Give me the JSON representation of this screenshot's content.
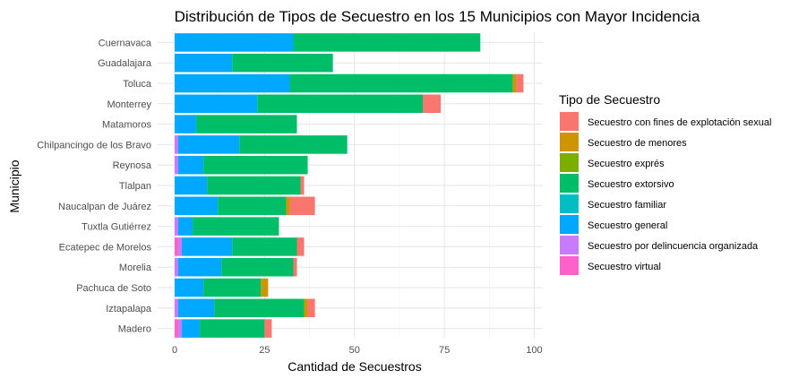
{
  "chart_data": {
    "type": "bar",
    "orientation": "horizontal",
    "stacked": true,
    "title": "Distribución de Tipos de Secuestro en los 15 Municipios con Mayor Incidencia",
    "xlabel": "Cantidad de Secuestros",
    "ylabel": "Municipio",
    "xlim": [
      0,
      100
    ],
    "x_ticks": [
      0,
      25,
      50,
      75,
      100
    ],
    "grid": true,
    "legend_position": "right",
    "legend_title": "Tipo de Secuestro",
    "categories": [
      "Cuernavaca",
      "Guadalajara",
      "Toluca",
      "Monterrey",
      "Matamoros",
      "Chilpancingo de los Bravo",
      "Reynosa",
      "Tlalpan",
      "Naucalpan de Juárez",
      "Tuxtla Gutiérrez",
      "Ecatepec de Morelos",
      "Morelia",
      "Pachuca de Soto",
      "Iztapalapa",
      "Madero"
    ],
    "stack_order": [
      "Secuestro virtual",
      "Secuestro por delincuencia organizada",
      "Secuestro general",
      "Secuestro familiar",
      "Secuestro extorsivo",
      "Secuestro exprés",
      "Secuestro de menores",
      "Secuestro con fines de explotación sexual"
    ],
    "series": [
      {
        "name": "Secuestro con fines de explotación sexual",
        "color": "#F8766D",
        "values": [
          0,
          0,
          2,
          5,
          0,
          0,
          0,
          1,
          7,
          0,
          2,
          1,
          0,
          2,
          2
        ]
      },
      {
        "name": "Secuestro de menores",
        "color": "#CD9600",
        "values": [
          0,
          0,
          1,
          0,
          0,
          0,
          0,
          0,
          1,
          0,
          0,
          0,
          2,
          1,
          0
        ]
      },
      {
        "name": "Secuestro exprés",
        "color": "#7CAE00",
        "values": [
          0,
          0,
          0,
          0,
          0,
          0,
          0,
          0,
          0,
          0,
          0,
          0,
          0,
          0,
          0
        ]
      },
      {
        "name": "Secuestro extorsivo",
        "color": "#00BE67",
        "values": [
          52,
          28,
          62,
          46,
          28,
          30,
          29,
          26,
          19,
          24,
          18,
          20,
          16,
          25,
          18
        ]
      },
      {
        "name": "Secuestro familiar",
        "color": "#00BFC4",
        "values": [
          0,
          0,
          0,
          0,
          0,
          0,
          0,
          0,
          0,
          0,
          0,
          0,
          0,
          0,
          0
        ]
      },
      {
        "name": "Secuestro general",
        "color": "#00A9FF",
        "values": [
          33,
          16,
          32,
          23,
          6,
          17,
          7,
          9,
          12,
          4,
          14,
          12,
          8,
          10,
          5
        ]
      },
      {
        "name": "Secuestro por delincuencia organizada",
        "color": "#C77CFF",
        "values": [
          0,
          0,
          0,
          0,
          0,
          1,
          1,
          0,
          0,
          1,
          1,
          1,
          0,
          1,
          1
        ]
      },
      {
        "name": "Secuestro virtual",
        "color": "#FF61CC",
        "values": [
          0,
          0,
          0,
          0,
          0,
          0,
          0,
          0,
          0,
          0,
          1,
          0,
          0,
          0,
          1
        ]
      }
    ]
  }
}
